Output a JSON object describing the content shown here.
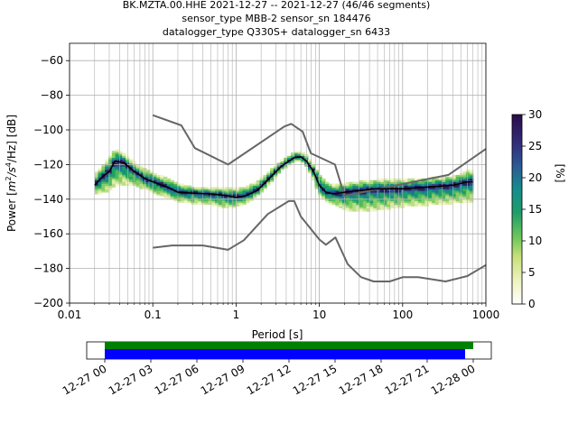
{
  "title": {
    "line1": "BK.MZTA.00.HHE   2021-12-27 -- 2021-12-27  (46/46 segments)",
    "line2": "sensor_type MBB-2 sensor_sn 184476",
    "line3": "datalogger_type Q330S+ datalogger_sn 6433"
  },
  "colorbar": {
    "label": "[%]",
    "ticks": [
      "0",
      "5",
      "10",
      "15",
      "20",
      "25",
      "30"
    ],
    "range": [
      0,
      30
    ]
  },
  "timeline": {
    "ticks": [
      "12-27 00",
      "12-27 03",
      "12-27 06",
      "12-27 09",
      "12-27 12",
      "12-27 15",
      "12-27 18",
      "12-27 21",
      "12-28 00"
    ],
    "colors": {
      "data_bar": "#0000ff",
      "segment_bar": "#008000"
    }
  },
  "colors": {
    "model_curves": "#666666",
    "mode_line": "#000000",
    "grid": "#b0b0b0"
  },
  "chart_data": {
    "type": "heatmap",
    "xlabel": "Period [s]",
    "ylabel": "Power [m²/s⁴/Hz] [dB]",
    "ylabel_parts": {
      "pre": "Power [",
      "m": "m",
      "exp1": "2",
      "s": "/s",
      "exp2": "4",
      "hz": "/Hz] [dB]"
    },
    "x_scale": "log",
    "xlim": [
      0.01,
      1000
    ],
    "ylim": [
      -200,
      -50
    ],
    "xticks": [
      0.01,
      0.1,
      1,
      10,
      100,
      1000
    ],
    "xtick_labels": [
      "0.01",
      "0.1",
      "1",
      "10",
      "100",
      "1000"
    ],
    "yticks": [
      -200,
      -180,
      -160,
      -140,
      -120,
      -100,
      -80,
      -60
    ],
    "ytick_labels": [
      "−200",
      "−180",
      "−160",
      "−140",
      "−120",
      "−100",
      "−80",
      "−60"
    ],
    "grid": true,
    "series": [
      {
        "role": "high-noise-model",
        "x": [
          0.1,
          0.22,
          0.32,
          0.8,
          3.8,
          4.6,
          6.3,
          7.9,
          15.4,
          20,
          354.8,
          1000
        ],
        "y": [
          -91.5,
          -97.4,
          -110.5,
          -120,
          -98,
          -96.5,
          -101,
          -113.5,
          -120,
          -138,
          -126,
          -111
        ]
      },
      {
        "role": "low-noise-model",
        "x": [
          0.1,
          0.17,
          0.4,
          0.8,
          1.24,
          2.4,
          4.3,
          5.0,
          6.0,
          10,
          12,
          15.6,
          21.9,
          31.6,
          45,
          70,
          101,
          154,
          328,
          600,
          1000
        ],
        "y": [
          -168,
          -166.7,
          -166.7,
          -169.2,
          -163.7,
          -148.6,
          -141.1,
          -141.1,
          -150,
          -163.3,
          -166.3,
          -162.1,
          -177.5,
          -185,
          -187.5,
          -187.5,
          -185,
          -185,
          -187.5,
          -184.4,
          -178
        ]
      },
      {
        "role": "mode",
        "x": [
          0.02,
          0.025,
          0.03,
          0.035,
          0.045,
          0.06,
          0.08,
          0.1,
          0.15,
          0.2,
          0.3,
          0.5,
          0.8,
          1.0,
          1.3,
          1.8,
          2.5,
          3.5,
          5.0,
          6.0,
          7.0,
          8.5,
          10,
          12,
          15,
          20,
          30,
          50,
          100,
          200,
          400,
          600,
          700
        ],
        "y": [
          -132,
          -127,
          -124,
          -118,
          -119,
          -124,
          -128,
          -130,
          -133,
          -136,
          -136.5,
          -137,
          -138,
          -139,
          -138,
          -135,
          -128,
          -121,
          -116,
          -115.5,
          -118,
          -124,
          -132,
          -136,
          -137,
          -136,
          -135,
          -134,
          -134,
          -133,
          -132,
          -130,
          -130
        ]
      },
      {
        "role": "density-upper",
        "x": [
          0.02,
          0.025,
          0.03,
          0.035,
          0.045,
          0.06,
          0.08,
          0.1,
          0.15,
          0.2,
          0.3,
          0.5,
          0.8,
          1.0,
          1.3,
          1.8,
          2.5,
          3.5,
          5.0,
          6.0,
          7.0,
          8.5,
          10,
          12,
          15,
          20,
          30,
          50,
          100,
          200,
          400,
          600,
          700
        ],
        "y": [
          -126,
          -121,
          -116,
          -111,
          -114,
          -119,
          -123,
          -125,
          -128,
          -131,
          -133,
          -134,
          -134,
          -134,
          -133,
          -130,
          -124,
          -118,
          -113,
          -113,
          -115,
          -120,
          -126,
          -130,
          -132,
          -131,
          -130,
          -129,
          -129,
          -128,
          -127,
          -124,
          -124
        ]
      },
      {
        "role": "density-lower",
        "x": [
          0.02,
          0.025,
          0.03,
          0.035,
          0.045,
          0.06,
          0.08,
          0.1,
          0.15,
          0.2,
          0.3,
          0.5,
          0.8,
          1.0,
          1.3,
          1.8,
          2.5,
          3.5,
          5.0,
          6.0,
          7.0,
          8.5,
          10,
          12,
          15,
          20,
          30,
          50,
          100,
          200,
          400,
          600,
          700
        ],
        "y": [
          -138,
          -137,
          -136,
          -133,
          -132,
          -133,
          -135,
          -137,
          -140,
          -142,
          -143,
          -144,
          -146,
          -145,
          -143,
          -139,
          -132,
          -124,
          -119,
          -118,
          -122,
          -130,
          -139,
          -142,
          -144,
          -147,
          -148,
          -147,
          -145,
          -144,
          -143,
          -142,
          -142
        ]
      }
    ]
  }
}
